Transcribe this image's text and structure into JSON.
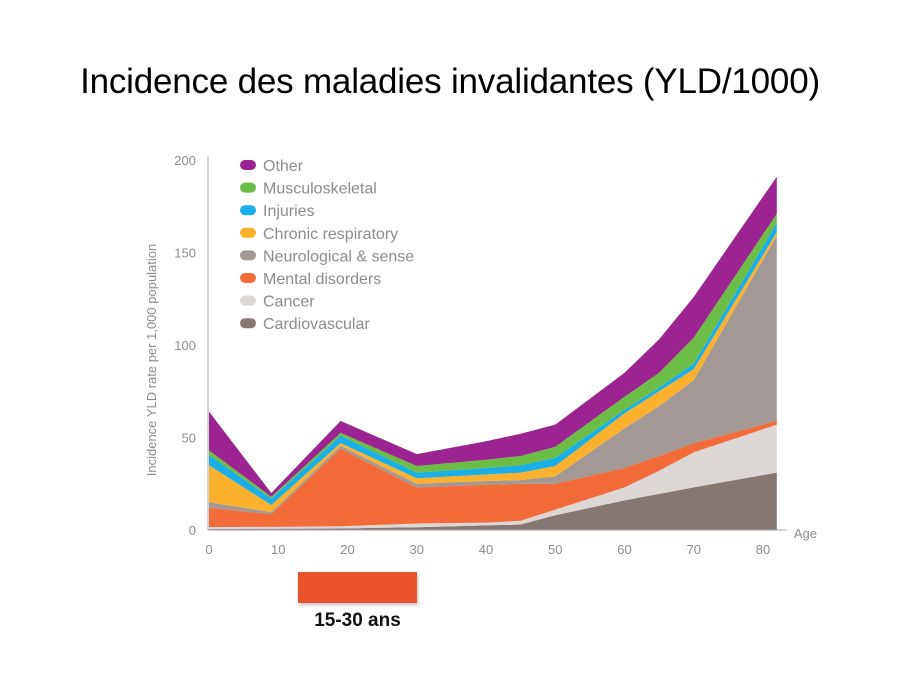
{
  "slide": {
    "title": "Incidence des maladies invalidantes (YLD/1000)",
    "highlight": {
      "label": "15-30 ans",
      "color": "#e9542c"
    }
  },
  "chart_data": {
    "type": "area",
    "stacked": true,
    "title": "",
    "xlabel": "Age",
    "ylabel": "Incidence YLD rate per 1,000 population",
    "x": [
      0,
      9,
      19,
      30,
      40,
      45,
      50,
      60,
      65,
      70,
      82
    ],
    "xlim": [
      0,
      82
    ],
    "ylim": [
      0,
      200
    ],
    "x_ticks": [
      0,
      10,
      20,
      30,
      40,
      50,
      60,
      70,
      80
    ],
    "y_ticks": [
      0,
      50,
      100,
      150,
      200
    ],
    "grid": false,
    "legend_position": "top-left",
    "series": [
      {
        "name": "Cardiovascular",
        "color": "#857772",
        "values": [
          0.5,
          0.7,
          0.8,
          1.5,
          2.5,
          3,
          8,
          16,
          19.5,
          23,
          31
        ]
      },
      {
        "name": "Cancer",
        "color": "#dcd6d4",
        "values": [
          1.1,
          1.0,
          1.2,
          2.0,
          1.5,
          2,
          3,
          7,
          12.5,
          19,
          26
        ]
      },
      {
        "name": "Mental disorders",
        "color": "#f26b38",
        "values": [
          10.4,
          6.9,
          42,
          19.5,
          20.5,
          20,
          14,
          10.5,
          8,
          5,
          2
        ]
      },
      {
        "name": "Neurological & sense",
        "color": "#a29895",
        "values": [
          3,
          1.1,
          1.5,
          2,
          2,
          2,
          4,
          21.5,
          27,
          34,
          100
        ]
      },
      {
        "name": "Chronic respiratory",
        "color": "#fbb12d",
        "values": [
          20,
          3.8,
          1.5,
          3,
          3.5,
          4,
          5.6,
          8,
          8,
          6,
          2
        ]
      },
      {
        "name": "Injuries",
        "color": "#1aafe6",
        "values": [
          5.5,
          3.5,
          4,
          3,
          3.5,
          4,
          4.4,
          2,
          2,
          3,
          5
        ]
      },
      {
        "name": "Musculoskeletal",
        "color": "#6cbd45",
        "values": [
          2.5,
          1,
          1.5,
          3.6,
          4.5,
          5,
          6,
          7,
          8,
          14,
          5
        ]
      },
      {
        "name": "Other",
        "color": "#9b2490",
        "values": [
          21,
          2,
          6.5,
          6.4,
          10,
          12,
          12,
          13,
          18,
          22,
          20
        ]
      }
    ],
    "legend_order": [
      "Other",
      "Musculoskeletal",
      "Injuries",
      "Chronic respiratory",
      "Neurological & sense",
      "Mental disorders",
      "Cancer",
      "Cardiovascular"
    ]
  }
}
